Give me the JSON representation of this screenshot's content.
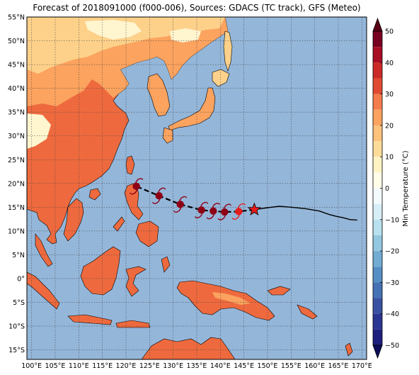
{
  "title": "Forecast of 2018091000 (f000-006), Sources: GDACS (TC track), GFS (Meteo)",
  "map": {
    "lon_range": [
      99,
      171
    ],
    "lat_range": [
      -17,
      55
    ],
    "lon_ticks": [
      {
        "value": 100,
        "label": "100°E"
      },
      {
        "value": 105,
        "label": "105°E"
      },
      {
        "value": 110,
        "label": "110°E"
      },
      {
        "value": 115,
        "label": "115°E"
      },
      {
        "value": 120,
        "label": "120°E"
      },
      {
        "value": 125,
        "label": "125°E"
      },
      {
        "value": 130,
        "label": "130°E"
      },
      {
        "value": 135,
        "label": "135°E"
      },
      {
        "value": 140,
        "label": "140°E"
      },
      {
        "value": 145,
        "label": "145°E"
      },
      {
        "value": 150,
        "label": "150°E"
      },
      {
        "value": 155,
        "label": "155°E"
      },
      {
        "value": 160,
        "label": "160°E"
      },
      {
        "value": 165,
        "label": "165°E"
      },
      {
        "value": 170,
        "label": "170°E"
      }
    ],
    "lat_ticks": [
      {
        "value": 55,
        "label": "55°N"
      },
      {
        "value": 50,
        "label": "50°N"
      },
      {
        "value": 45,
        "label": "45°N"
      },
      {
        "value": 40,
        "label": "40°N"
      },
      {
        "value": 35,
        "label": "35°N"
      },
      {
        "value": 30,
        "label": "30°N"
      },
      {
        "value": 25,
        "label": "25°N"
      },
      {
        "value": 20,
        "label": "20°N"
      },
      {
        "value": 15,
        "label": "15°N"
      },
      {
        "value": 10,
        "label": "10°N"
      },
      {
        "value": 5,
        "label": "5°N"
      },
      {
        "value": 0,
        "label": "0°"
      },
      {
        "value": -5,
        "label": "5°S"
      },
      {
        "value": -10,
        "label": "10°S"
      },
      {
        "value": -15,
        "label": "15°S"
      }
    ],
    "colors": {
      "ocean": "#94b6d9",
      "cool": "#fff5cf",
      "mild": "#fdd18a",
      "warm": "#fba35f",
      "hot": "#ee6a3e"
    },
    "past_track": [
      [
        169,
        12.3
      ],
      [
        167.5,
        12.4
      ],
      [
        166,
        12.8
      ],
      [
        164.5,
        13.1
      ],
      [
        163,
        13.5
      ],
      [
        161,
        14.2
      ],
      [
        158,
        14.7
      ],
      [
        155,
        15.0
      ],
      [
        152.5,
        15.2
      ],
      [
        150,
        14.9
      ],
      [
        147.2,
        14.5
      ]
    ],
    "forecast_track": [
      [
        147.2,
        14.5
      ],
      [
        143.9,
        14.1
      ],
      [
        140.9,
        14.0
      ],
      [
        138.5,
        14.2
      ],
      [
        136,
        14.4
      ],
      [
        131.5,
        15.6
      ],
      [
        127,
        17.4
      ],
      [
        122.2,
        19.4
      ]
    ],
    "current_position": {
      "lon": 147.2,
      "lat": 14.5,
      "icon": "star-icon",
      "color": "#e81a1a"
    },
    "forecast_points": [
      {
        "lon": 143.9,
        "lat": 14.1,
        "icon": "tropical-storm-icon",
        "color": "#e51c1c"
      },
      {
        "lon": 140.9,
        "lat": 14.0,
        "icon": "typhoon-icon",
        "color": "#8e0016"
      },
      {
        "lon": 138.5,
        "lat": 14.2,
        "icon": "typhoon-icon",
        "color": "#8e0016"
      },
      {
        "lon": 136.0,
        "lat": 14.4,
        "icon": "typhoon-icon",
        "color": "#8e0016"
      },
      {
        "lon": 131.5,
        "lat": 15.6,
        "icon": "typhoon-icon",
        "color": "#8e0016"
      },
      {
        "lon": 127.0,
        "lat": 17.4,
        "icon": "typhoon-icon",
        "color": "#8e0016"
      },
      {
        "lon": 122.2,
        "lat": 19.4,
        "icon": "typhoon-icon",
        "color": "#8e0016"
      }
    ]
  },
  "colorbar": {
    "label": "Min Temperature (°C)",
    "ticks": [
      {
        "value": 50,
        "label": "50"
      },
      {
        "value": 40,
        "label": "40"
      },
      {
        "value": 30,
        "label": "30"
      },
      {
        "value": 20,
        "label": "20"
      },
      {
        "value": 10,
        "label": "10"
      },
      {
        "value": 0,
        "label": "0"
      },
      {
        "value": -10,
        "label": "−10"
      },
      {
        "value": -20,
        "label": "−20"
      },
      {
        "value": -30,
        "label": "−30"
      },
      {
        "value": -40,
        "label": "−40"
      },
      {
        "value": -50,
        "label": "−50"
      }
    ],
    "bins": [
      {
        "from": 45,
        "to": 50,
        "color": "#780020"
      },
      {
        "from": 40,
        "to": 45,
        "color": "#a80d24"
      },
      {
        "from": 35,
        "to": 40,
        "color": "#cb2a28"
      },
      {
        "from": 30,
        "to": 35,
        "color": "#e04a33"
      },
      {
        "from": 25,
        "to": 30,
        "color": "#f47c4c"
      },
      {
        "from": 20,
        "to": 25,
        "color": "#fba35f"
      },
      {
        "from": 15,
        "to": 20,
        "color": "#fdc27c"
      },
      {
        "from": 10,
        "to": 15,
        "color": "#fddc9a"
      },
      {
        "from": 5,
        "to": 10,
        "color": "#fff3c4"
      },
      {
        "from": 0,
        "to": 5,
        "color": "#fffde8"
      },
      {
        "from": -5,
        "to": 0,
        "color": "#f3fafd"
      },
      {
        "from": -10,
        "to": -5,
        "color": "#d8eef6"
      },
      {
        "from": -15,
        "to": -10,
        "color": "#b8e0ee"
      },
      {
        "from": -20,
        "to": -15,
        "color": "#94c8e0"
      },
      {
        "from": -25,
        "to": -20,
        "color": "#72acd3"
      },
      {
        "from": -30,
        "to": -25,
        "color": "#568fc4"
      },
      {
        "from": -35,
        "to": -30,
        "color": "#4572b4"
      },
      {
        "from": -40,
        "to": -35,
        "color": "#3a51a3"
      },
      {
        "from": -45,
        "to": -40,
        "color": "#2b3592"
      },
      {
        "from": -50,
        "to": -45,
        "color": "#1d1e7e"
      }
    ],
    "extend_top_color": "#5a0015",
    "extend_bottom_color": "#0c0c5a"
  }
}
